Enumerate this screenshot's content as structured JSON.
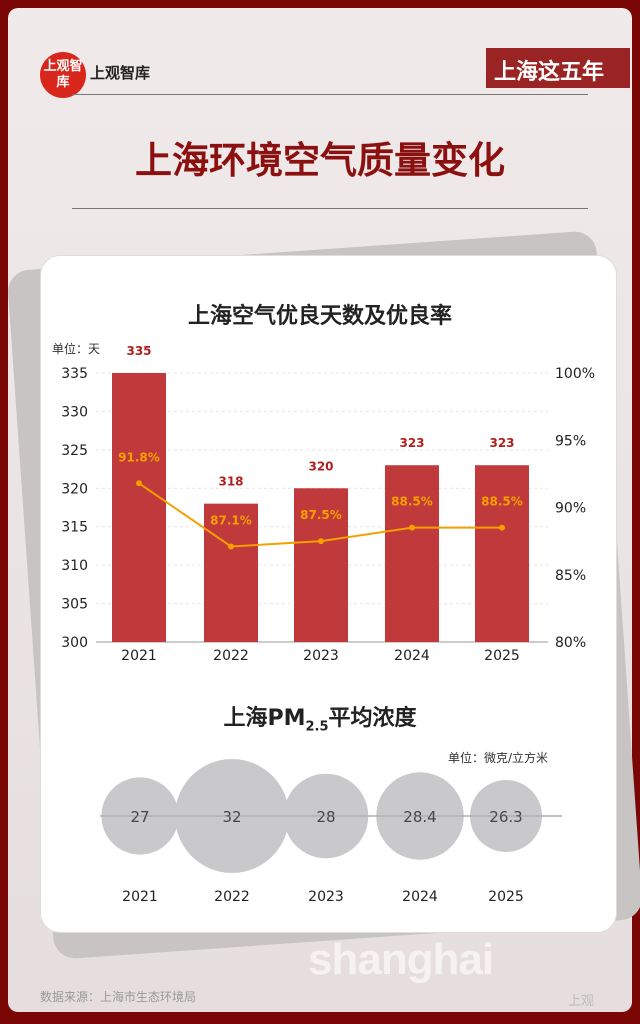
{
  "header": {
    "logo_badge": "上观智库",
    "logo_text": "上观智库",
    "series_label": "上海这五年",
    "title": "上海环境空气质量变化"
  },
  "colors": {
    "bar": "#c0393b",
    "line": "#f5a000",
    "bubble": "#c9c9cb",
    "frame": "#7a0606",
    "title": "#8b1010"
  },
  "chart_data": [
    {
      "type": "bar+line",
      "title": "上海空气优良天数及优良率",
      "unit_left": "单位：天",
      "categories": [
        "2021",
        "2022",
        "2023",
        "2024",
        "2025"
      ],
      "bar_values": [
        335,
        318,
        320,
        323,
        323
      ],
      "bar_labels": [
        "335",
        "318",
        "320",
        "323",
        "323"
      ],
      "line_values": [
        91.8,
        87.1,
        87.5,
        88.5,
        88.5
      ],
      "line_labels": [
        "91.8%",
        "87.1%",
        "87.5%",
        "88.5%",
        "88.5%"
      ],
      "ylim_left": [
        300,
        335
      ],
      "yticks_left": [
        "300",
        "305",
        "310",
        "315",
        "320",
        "325",
        "330",
        "335"
      ],
      "ylim_right": [
        80,
        100
      ],
      "yticks_right": [
        "80%",
        "85%",
        "90%",
        "95%",
        "100%"
      ],
      "grid": true
    },
    {
      "type": "bubble",
      "title_main": "上海PM",
      "title_sub": "2.5",
      "title_tail": "平均浓度",
      "unit": "单位：微克/立方米",
      "categories": [
        "2021",
        "2022",
        "2023",
        "2024",
        "2025"
      ],
      "values": [
        27,
        32,
        28,
        28.4,
        26.3
      ],
      "labels": [
        "27",
        "32",
        "28",
        "28.4",
        "26.3"
      ]
    }
  ],
  "footer": {
    "source": "数据来源：上海市生态环境局",
    "corner_mark": "上观"
  },
  "background_text": "shanghai"
}
